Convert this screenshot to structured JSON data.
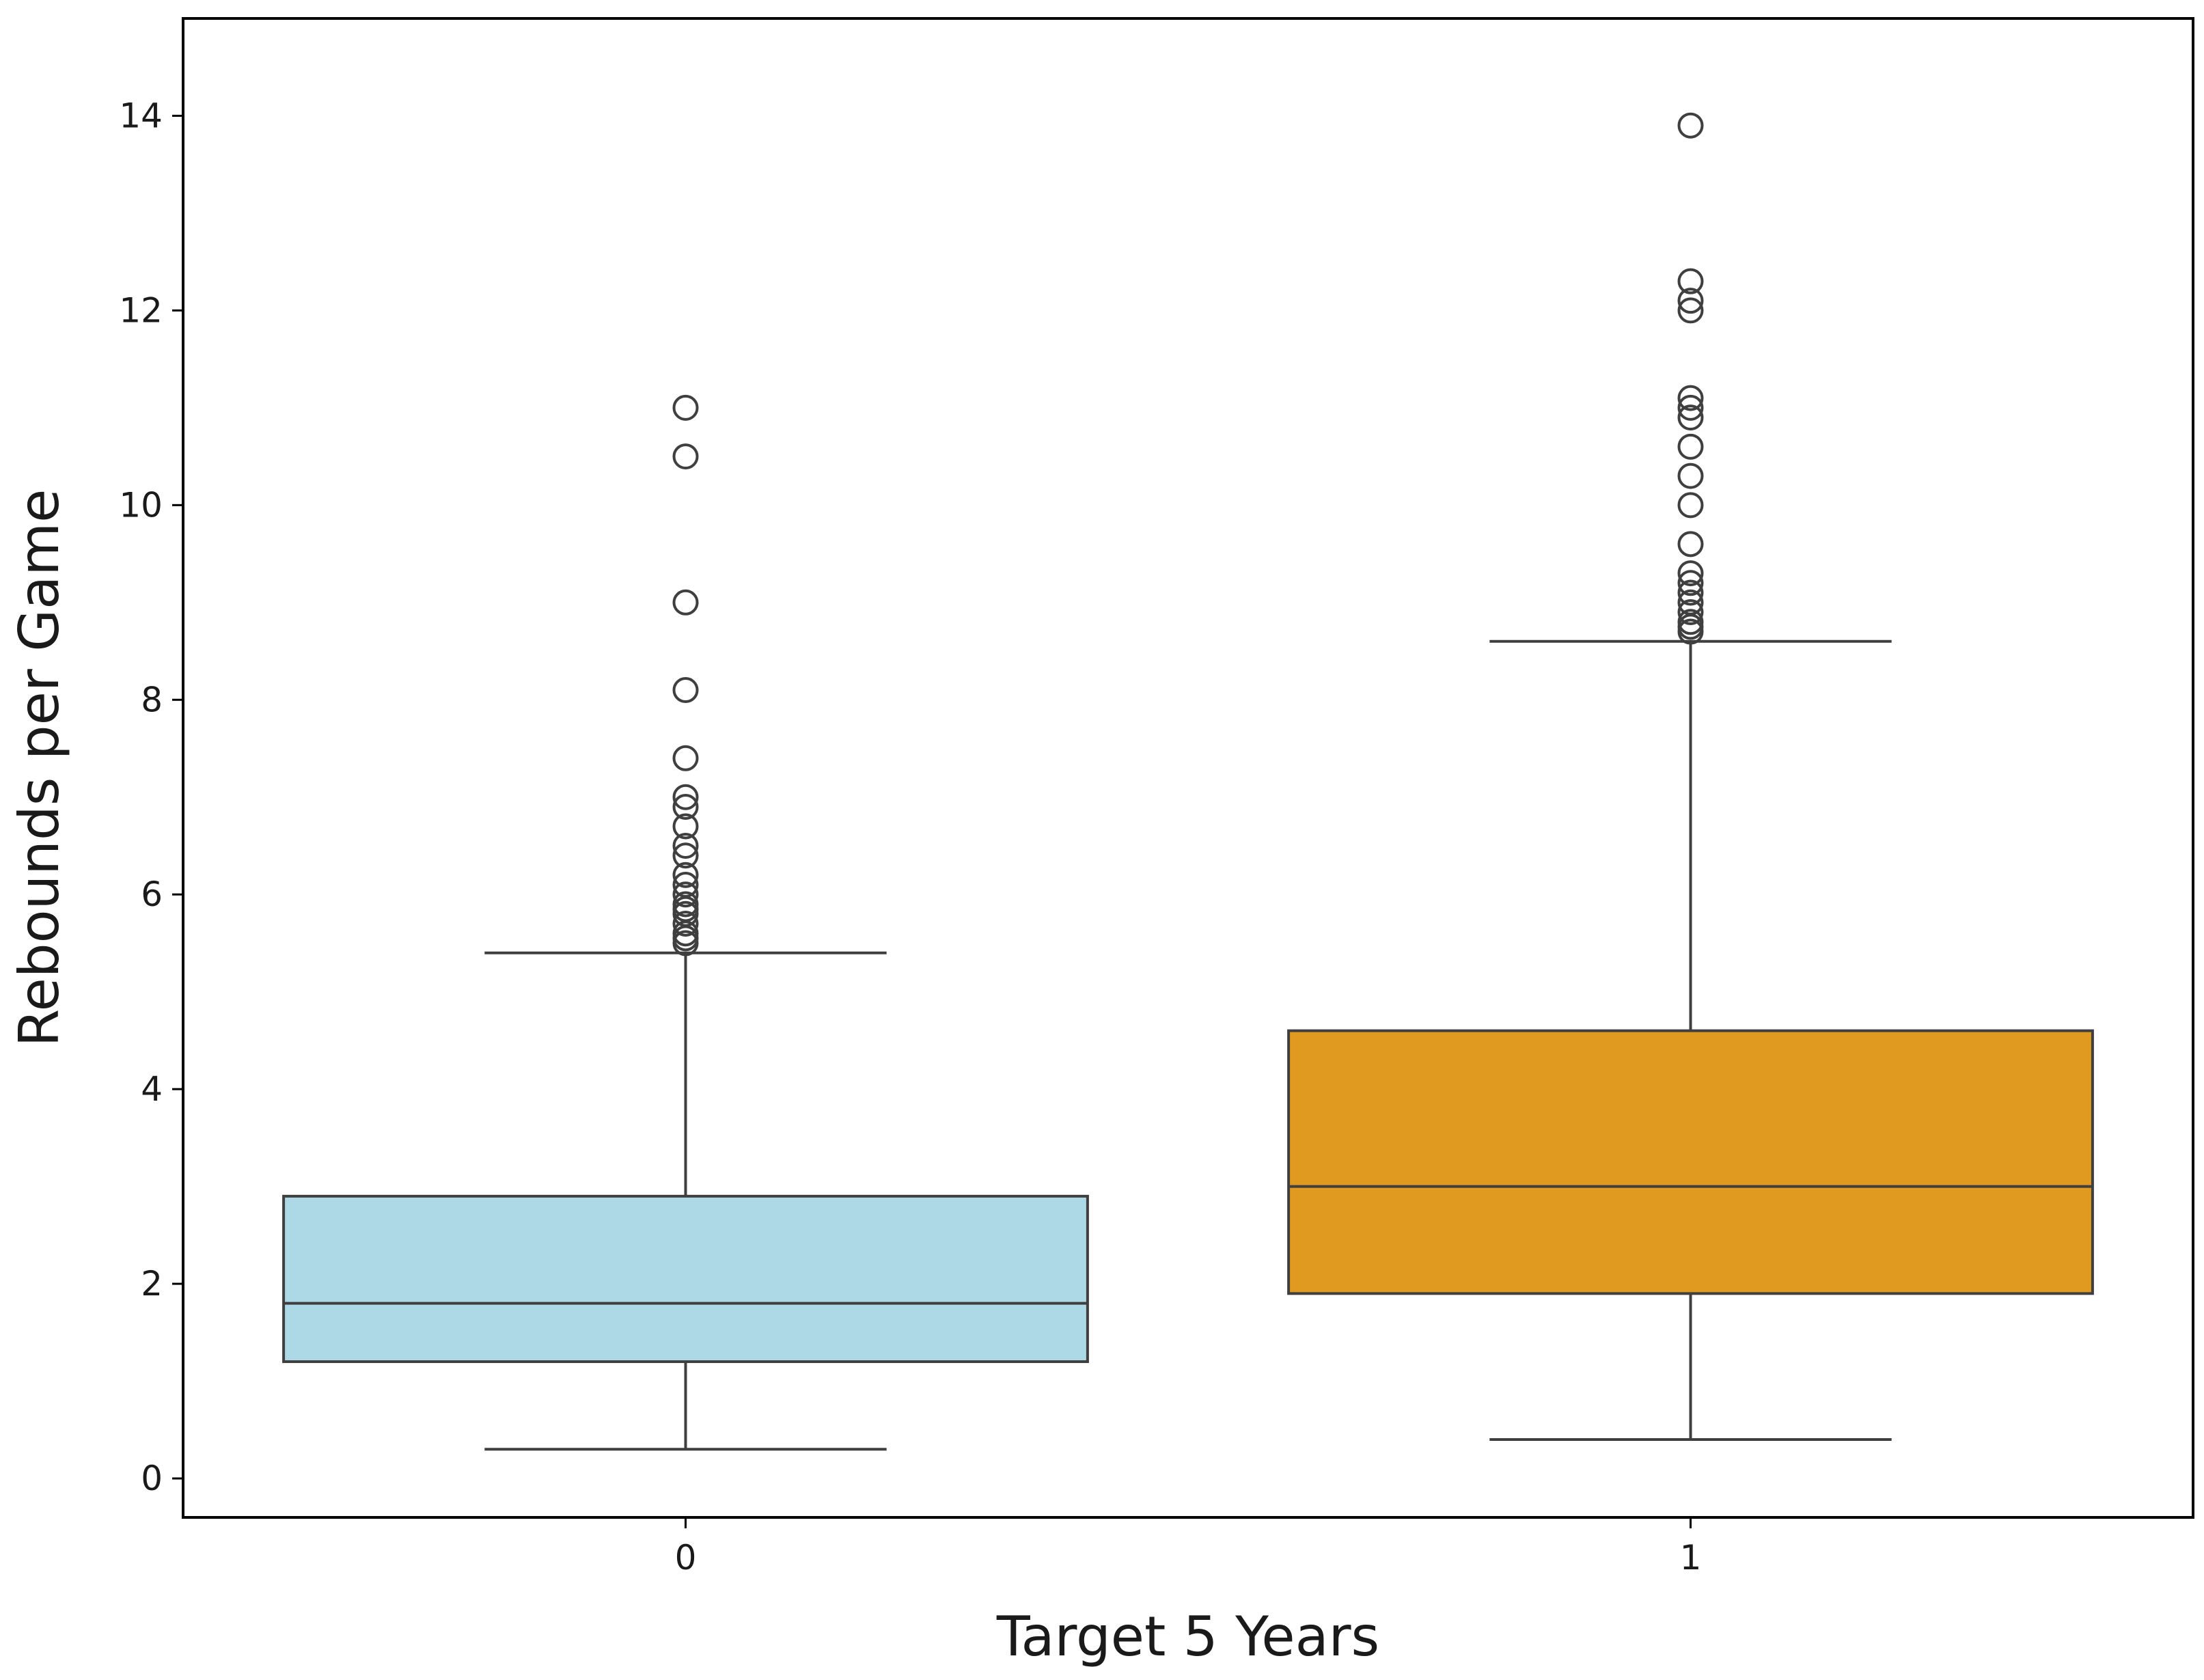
{
  "chart_data": {
    "type": "box",
    "xlabel": "Target 5 Years",
    "ylabel": "Rebounds per Game",
    "ylim": [
      -0.4,
      15.0
    ],
    "yticks": [
      0,
      2,
      4,
      6,
      8,
      10,
      12,
      14
    ],
    "grid": false,
    "legend": false,
    "categories": [
      "0",
      "1"
    ],
    "boxes": [
      {
        "category": "0",
        "color": "#add8e6",
        "whisker_low": 0.3,
        "q1": 1.2,
        "median": 1.8,
        "q3": 2.9,
        "whisker_high": 5.4,
        "outliers": [
          5.5,
          5.55,
          5.6,
          5.7,
          5.8,
          5.85,
          5.9,
          6.0,
          6.1,
          6.2,
          6.4,
          6.5,
          6.7,
          6.9,
          7.0,
          7.4,
          8.1,
          9.0,
          10.5,
          11.0
        ]
      },
      {
        "category": "1",
        "color": "#e09a20",
        "whisker_low": 0.4,
        "q1": 1.9,
        "median": 3.0,
        "q3": 4.6,
        "whisker_high": 8.6,
        "outliers": [
          8.7,
          8.75,
          8.8,
          8.9,
          9.0,
          9.1,
          9.2,
          9.3,
          9.6,
          10.0,
          10.3,
          10.6,
          10.9,
          11.0,
          11.1,
          12.0,
          12.1,
          12.3,
          13.9
        ]
      }
    ]
  }
}
